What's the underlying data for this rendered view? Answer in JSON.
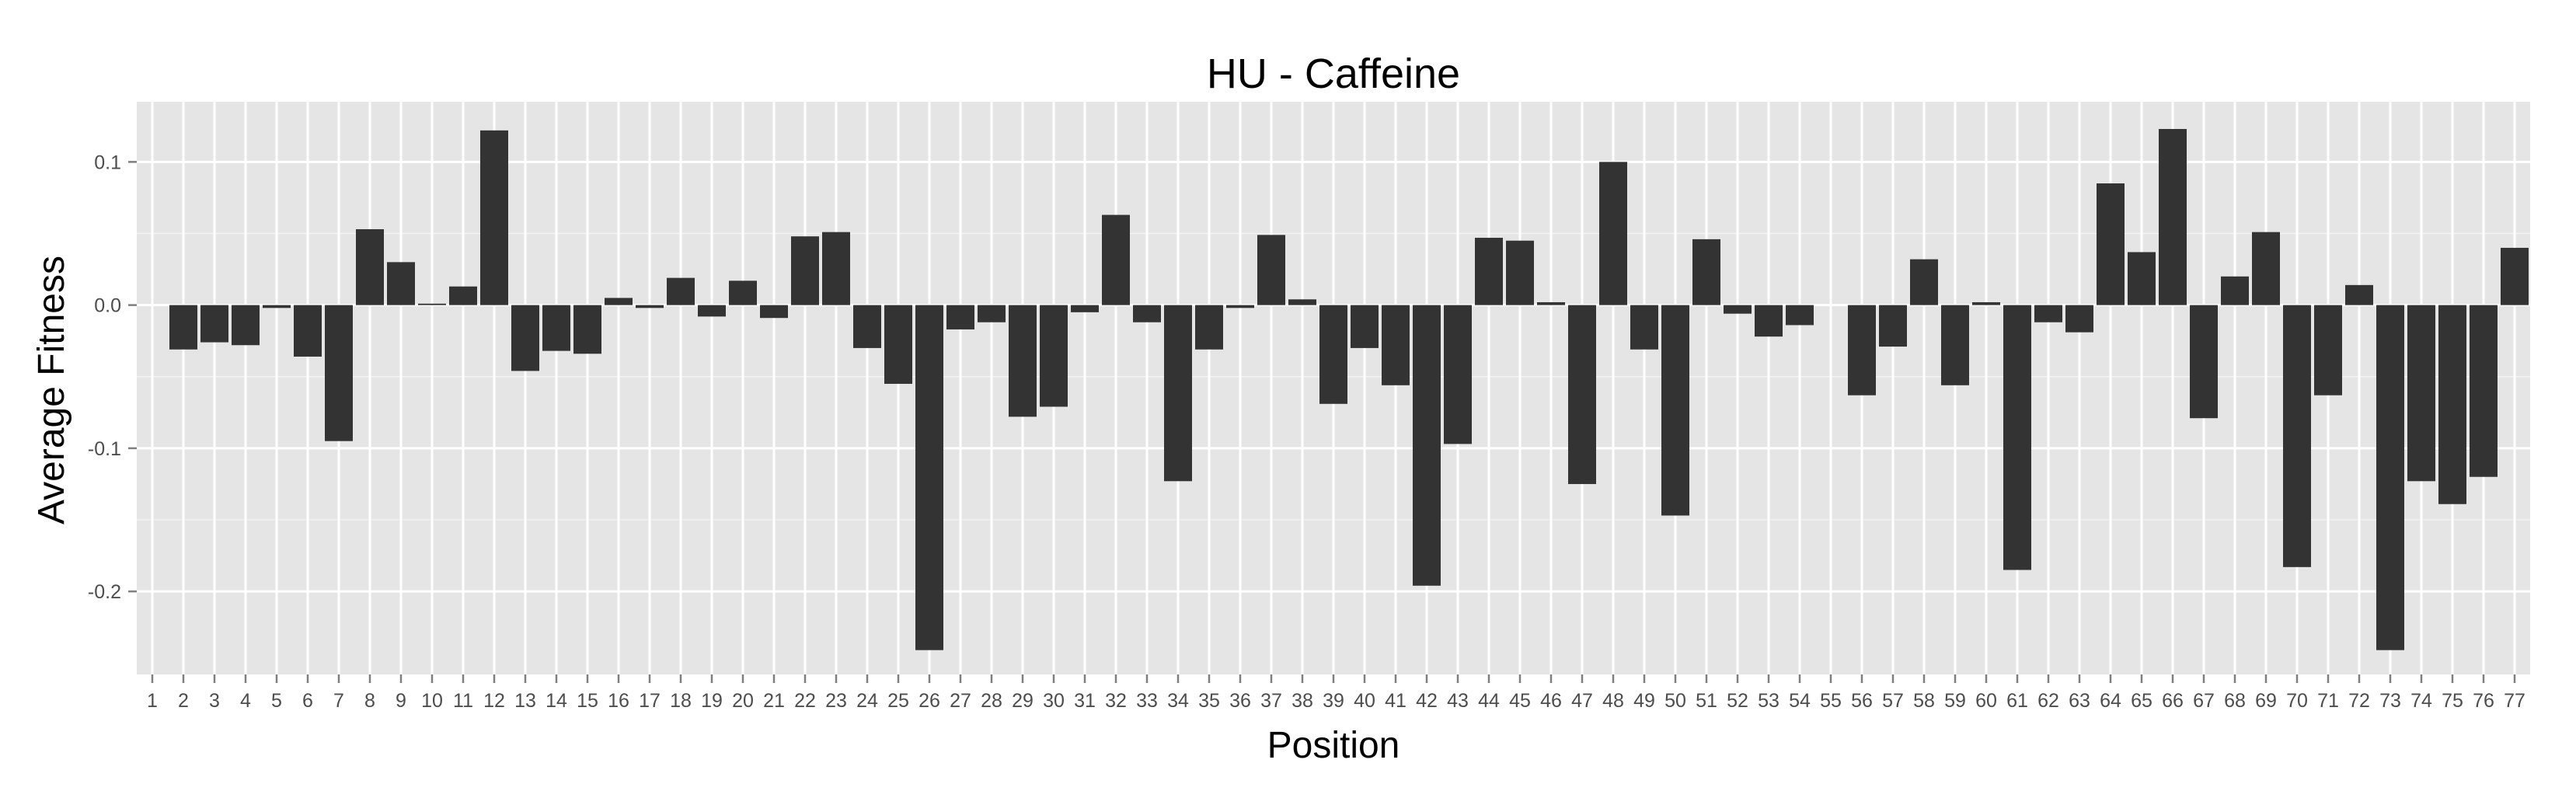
{
  "chart_data": {
    "type": "bar",
    "title": "HU - Caffeine",
    "xlabel": "Position",
    "ylabel": "Average Fitness",
    "ylim": [
      -0.258,
      0.142
    ],
    "yticks": [
      0.1,
      0.0,
      -0.1,
      -0.2
    ],
    "ytick_labels": [
      "0.1",
      "0.0",
      "-0.1",
      "-0.2"
    ],
    "categories": [
      "1",
      "2",
      "3",
      "4",
      "5",
      "6",
      "7",
      "8",
      "9",
      "10",
      "11",
      "12",
      "13",
      "14",
      "15",
      "16",
      "17",
      "18",
      "19",
      "20",
      "21",
      "22",
      "23",
      "24",
      "25",
      "26",
      "27",
      "28",
      "29",
      "30",
      "31",
      "32",
      "33",
      "34",
      "35",
      "36",
      "37",
      "38",
      "39",
      "40",
      "41",
      "42",
      "43",
      "44",
      "45",
      "46",
      "47",
      "48",
      "49",
      "50",
      "51",
      "52",
      "53",
      "54",
      "55",
      "56",
      "57",
      "58",
      "59",
      "60",
      "61",
      "62",
      "63",
      "64",
      "65",
      "66",
      "67",
      "68",
      "69",
      "70",
      "71",
      "72",
      "73",
      "74",
      "75",
      "76",
      "77"
    ],
    "values": [
      0,
      -0.031,
      -0.026,
      -0.028,
      -0.002,
      -0.036,
      -0.095,
      0.053,
      0.03,
      0.001,
      0.013,
      0.122,
      -0.046,
      -0.032,
      -0.034,
      0.005,
      -0.002,
      0.019,
      -0.008,
      0.017,
      -0.009,
      0.048,
      0.051,
      -0.03,
      -0.055,
      -0.241,
      -0.017,
      -0.012,
      -0.078,
      -0.071,
      -0.005,
      0.063,
      -0.012,
      -0.123,
      -0.031,
      -0.002,
      0.049,
      0.004,
      -0.069,
      -0.03,
      -0.056,
      -0.196,
      -0.097,
      0.047,
      0.045,
      0.002,
      -0.125,
      0.1,
      -0.031,
      -0.147,
      0.046,
      -0.006,
      -0.022,
      -0.014,
      0,
      -0.063,
      -0.029,
      0.032,
      -0.056,
      0.002,
      -0.185,
      -0.012,
      -0.019,
      0.085,
      0.037,
      0.123,
      -0.079,
      0.02,
      0.051,
      -0.183,
      -0.063,
      0.014,
      -0.241,
      -0.123,
      -0.139,
      -0.12,
      0.04
    ],
    "grid": true,
    "legend": "none",
    "colors": {
      "bar": "#333333",
      "panel": "#e5e5e5",
      "grid": "#ffffff",
      "tick_text": "#4d4d4d"
    }
  }
}
